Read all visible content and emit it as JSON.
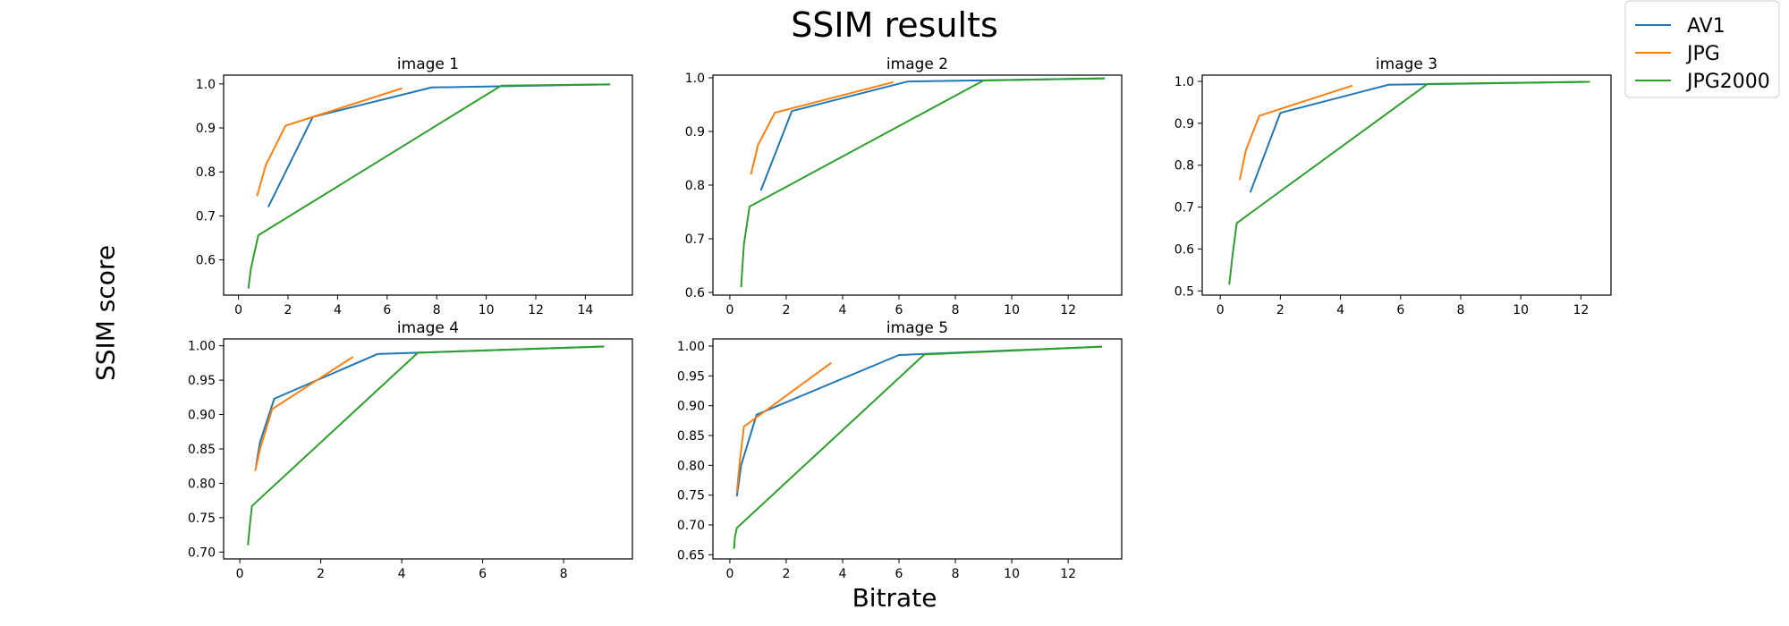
{
  "figure": {
    "title": "SSIM results",
    "xlabel": "Bitrate",
    "ylabel": "SSIM score"
  },
  "legend": {
    "placement": "top-right",
    "entries": [
      {
        "label": "AV1",
        "color": "#1f77b4"
      },
      {
        "label": "JPG",
        "color": "#ff7f0e"
      },
      {
        "label": "JPG2000",
        "color": "#2ca02c"
      }
    ]
  },
  "chart_data": [
    {
      "type": "line",
      "title": "image 1",
      "xlim": [
        -0.6,
        15.9
      ],
      "ylim": [
        0.52,
        1.02
      ],
      "xticks": [
        0,
        2,
        4,
        6,
        8,
        10,
        12,
        14
      ],
      "yticks": [
        0.6,
        0.7,
        0.8,
        0.9,
        1.0
      ],
      "ytick_labels": [
        "0.6",
        "0.7",
        "0.8",
        "0.9",
        "1.0"
      ],
      "series": [
        {
          "name": "AV1",
          "color": "#1f77b4",
          "x": [
            1.2,
            3.0,
            7.8,
            15.0
          ],
          "y": [
            0.72,
            0.925,
            0.992,
            0.999
          ]
        },
        {
          "name": "JPG",
          "color": "#ff7f0e",
          "x": [
            0.75,
            1.1,
            1.9,
            3.0,
            6.6
          ],
          "y": [
            0.745,
            0.815,
            0.905,
            0.925,
            0.99
          ]
        },
        {
          "name": "JPG2000",
          "color": "#2ca02c",
          "x": [
            0.4,
            0.5,
            0.8,
            10.6,
            15.0
          ],
          "y": [
            0.535,
            0.58,
            0.656,
            0.996,
            0.999
          ]
        }
      ]
    },
    {
      "type": "line",
      "title": "image 2",
      "xlim": [
        -0.6,
        13.9
      ],
      "ylim": [
        0.595,
        1.005
      ],
      "xticks": [
        0,
        2,
        4,
        6,
        8,
        10,
        12
      ],
      "yticks": [
        0.6,
        0.7,
        0.8,
        0.9,
        1.0
      ],
      "ytick_labels": [
        "0.6",
        "0.7",
        "0.8",
        "0.9",
        "1.0"
      ],
      "series": [
        {
          "name": "AV1",
          "color": "#1f77b4",
          "x": [
            1.1,
            2.2,
            6.3,
            13.3
          ],
          "y": [
            0.79,
            0.938,
            0.993,
            0.999
          ]
        },
        {
          "name": "JPG",
          "color": "#ff7f0e",
          "x": [
            0.75,
            1.0,
            1.6,
            5.8
          ],
          "y": [
            0.82,
            0.875,
            0.935,
            0.992
          ]
        },
        {
          "name": "JPG2000",
          "color": "#2ca02c",
          "x": [
            0.4,
            0.5,
            0.7,
            9.0,
            13.3
          ],
          "y": [
            0.61,
            0.69,
            0.76,
            0.995,
            0.999
          ]
        }
      ]
    },
    {
      "type": "line",
      "title": "image 3",
      "xlim": [
        -0.6,
        13.0
      ],
      "ylim": [
        0.49,
        1.015
      ],
      "xticks": [
        0,
        2,
        4,
        6,
        8,
        10,
        12
      ],
      "yticks": [
        0.5,
        0.6,
        0.7,
        0.8,
        0.9,
        1.0
      ],
      "ytick_labels": [
        "0.5",
        "0.6",
        "0.7",
        "0.8",
        "0.9",
        "1.0"
      ],
      "series": [
        {
          "name": "AV1",
          "color": "#1f77b4",
          "x": [
            1.0,
            2.0,
            5.6,
            12.3
          ],
          "y": [
            0.735,
            0.925,
            0.992,
            0.999
          ]
        },
        {
          "name": "JPG",
          "color": "#ff7f0e",
          "x": [
            0.65,
            0.85,
            1.3,
            4.4
          ],
          "y": [
            0.765,
            0.835,
            0.918,
            0.99
          ]
        },
        {
          "name": "JPG2000",
          "color": "#2ca02c",
          "x": [
            0.3,
            0.4,
            0.55,
            6.9,
            12.3
          ],
          "y": [
            0.515,
            0.58,
            0.662,
            0.994,
            0.999
          ]
        }
      ]
    },
    {
      "type": "line",
      "title": "image 4",
      "xlim": [
        -0.4,
        9.7
      ],
      "ylim": [
        0.69,
        1.01
      ],
      "xticks": [
        0,
        2,
        4,
        6,
        8
      ],
      "yticks": [
        0.7,
        0.75,
        0.8,
        0.85,
        0.9,
        0.95,
        1.0
      ],
      "ytick_labels": [
        "0.70",
        "0.75",
        "0.80",
        "0.85",
        "0.90",
        "0.95",
        "1.00"
      ],
      "series": [
        {
          "name": "AV1",
          "color": "#1f77b4",
          "x": [
            0.4,
            0.5,
            0.85,
            3.4,
            9.0
          ],
          "y": [
            0.825,
            0.86,
            0.923,
            0.988,
            0.999
          ]
        },
        {
          "name": "JPG",
          "color": "#ff7f0e",
          "x": [
            0.38,
            0.5,
            0.8,
            2.8
          ],
          "y": [
            0.818,
            0.85,
            0.908,
            0.984
          ]
        },
        {
          "name": "JPG2000",
          "color": "#2ca02c",
          "x": [
            0.2,
            0.25,
            0.3,
            4.4,
            9.0
          ],
          "y": [
            0.71,
            0.74,
            0.767,
            0.99,
            0.999
          ]
        }
      ]
    },
    {
      "type": "line",
      "title": "image 5",
      "xlim": [
        -0.6,
        13.9
      ],
      "ylim": [
        0.643,
        1.012
      ],
      "xticks": [
        0,
        2,
        4,
        6,
        8,
        10,
        12
      ],
      "yticks": [
        0.65,
        0.7,
        0.75,
        0.8,
        0.85,
        0.9,
        0.95,
        1.0
      ],
      "ytick_labels": [
        "0.65",
        "0.70",
        "0.75",
        "0.80",
        "0.85",
        "0.90",
        "0.95",
        "1.00"
      ],
      "series": [
        {
          "name": "AV1",
          "color": "#1f77b4",
          "x": [
            0.25,
            0.4,
            0.95,
            6.0,
            13.2
          ],
          "y": [
            0.748,
            0.8,
            0.885,
            0.985,
            0.999
          ]
        },
        {
          "name": "JPG",
          "color": "#ff7f0e",
          "x": [
            0.25,
            0.35,
            0.5,
            3.6
          ],
          "y": [
            0.755,
            0.805,
            0.865,
            0.972
          ]
        },
        {
          "name": "JPG2000",
          "color": "#2ca02c",
          "x": [
            0.15,
            0.18,
            0.25,
            6.9,
            13.2
          ],
          "y": [
            0.66,
            0.68,
            0.695,
            0.986,
            0.999
          ]
        }
      ]
    }
  ]
}
